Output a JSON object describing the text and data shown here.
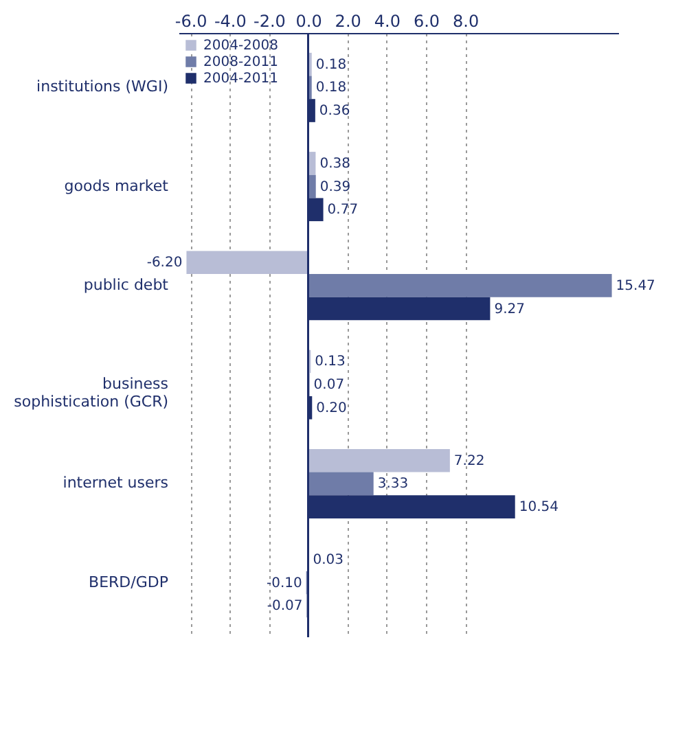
{
  "chart_data": {
    "type": "bar",
    "orientation": "horizontal",
    "categories": [
      "institutions (WGI)",
      "goods market",
      "public debt",
      "business sophistication (GCR)",
      "internet users",
      "BERD/GDP"
    ],
    "series": [
      {
        "name": "2004-2008",
        "color": "#b8bdd6",
        "values": [
          0.18,
          0.38,
          -6.2,
          0.13,
          7.22,
          0.03
        ],
        "value_labels": [
          "0.18",
          "0.38",
          "-6.20",
          "0.13",
          "7.22",
          "0.03"
        ]
      },
      {
        "name": "2008-2011",
        "color": "#6f7ca8",
        "values": [
          0.18,
          0.39,
          15.47,
          0.07,
          3.33,
          -0.1
        ],
        "value_labels": [
          "0.18",
          "0.39",
          "15.47",
          "0.07",
          "3.33",
          "-0.10"
        ]
      },
      {
        "name": "2004-2011",
        "color": "#1f2f6b",
        "values": [
          0.36,
          0.77,
          9.27,
          0.2,
          10.54,
          -0.07
        ],
        "value_labels": [
          "0.36",
          "0.77",
          "9.27",
          "0.20",
          "10.54",
          "-0.07"
        ]
      }
    ],
    "xlim": [
      -6.6,
      15.8
    ],
    "xticks": [
      {
        "value": -6,
        "label": "-6.0"
      },
      {
        "value": -4,
        "label": "-4.0"
      },
      {
        "value": -2,
        "label": "-2.0"
      },
      {
        "value": 0,
        "label": "0.0"
      },
      {
        "value": 2,
        "label": "2.0"
      },
      {
        "value": 4,
        "label": "4.0"
      },
      {
        "value": 6,
        "label": "6.0"
      },
      {
        "value": 8,
        "label": "8.0"
      }
    ],
    "ref_lines": [
      {
        "axis": "x",
        "value": 0,
        "color": "#1f2f6b"
      }
    ],
    "grid": "x",
    "legend": "top left"
  }
}
